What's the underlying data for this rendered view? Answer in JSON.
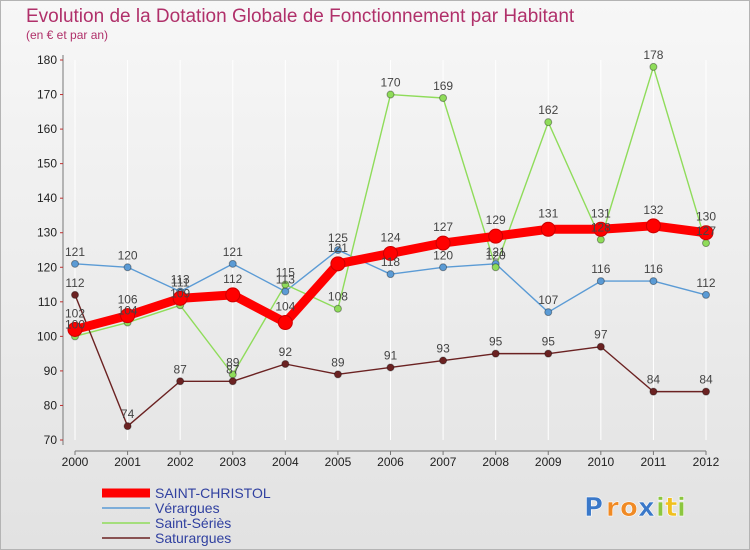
{
  "chart_data": {
    "type": "line",
    "title": "Evolution de la Dotation Globale de Fonctionnement par Habitant",
    "subtitle": "(en € et par an)",
    "x": [
      2000,
      2001,
      2002,
      2003,
      2004,
      2005,
      2006,
      2007,
      2008,
      2009,
      2010,
      2011,
      2012
    ],
    "ylim": [
      70,
      180
    ],
    "yticks": [
      70,
      80,
      90,
      100,
      110,
      120,
      130,
      140,
      150,
      160,
      170,
      180
    ],
    "legend_position": "bottom-left",
    "series": [
      {
        "name": "Vérargues",
        "color": "#5b9bd5",
        "values": [
          121,
          120,
          113,
          121,
          113,
          125,
          118,
          120,
          121,
          107,
          116,
          116,
          112
        ]
      },
      {
        "name": "Saint-Sériès",
        "color": "#8fdc5a",
        "values": [
          100,
          104,
          109,
          89,
          115,
          108,
          170,
          169,
          120,
          162,
          128,
          178,
          127
        ]
      },
      {
        "name": "Saturargues",
        "color": "#6b2222",
        "values": [
          112,
          74,
          87,
          87,
          92,
          89,
          91,
          93,
          95,
          95,
          97,
          84,
          84
        ]
      },
      {
        "name": "SAINT-CHRISTOL",
        "color": "#ff0000",
        "values": [
          102,
          106,
          111,
          112,
          104,
          121,
          124,
          127,
          129,
          131,
          131,
          132,
          130
        ]
      }
    ],
    "legend_order": [
      "SAINT-CHRISTOL",
      "Vérargues",
      "Saint-Sériès",
      "Saturargues"
    ]
  },
  "logo": {
    "text": "Proxiti",
    "letters": [
      "P",
      "r",
      "o",
      "x",
      "i",
      "t",
      "i"
    ],
    "colors": [
      "#3a78c9",
      "#f08a24",
      "#f08a24",
      "#3a78c9",
      "#8cc63f",
      "#f0c020",
      "#8cc63f"
    ]
  }
}
